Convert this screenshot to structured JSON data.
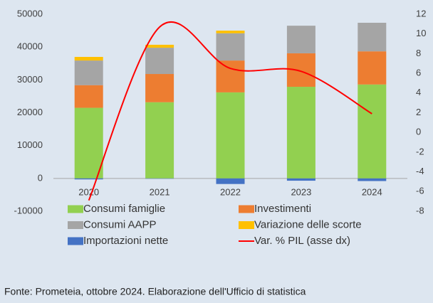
{
  "chart_data": {
    "type": "bar",
    "categories": [
      "2020",
      "2021",
      "2022",
      "2023",
      "2024"
    ],
    "series": [
      {
        "name": "Consumi famiglie",
        "color": "#92d050",
        "values": [
          21500,
          23200,
          26200,
          27900,
          28600
        ]
      },
      {
        "name": "Investimenti",
        "color": "#ed7d31",
        "values": [
          6900,
          8600,
          9700,
          10200,
          10100
        ]
      },
      {
        "name": "Consumi AAPP",
        "color": "#a5a5a5",
        "values": [
          7500,
          8000,
          8300,
          8400,
          8700
        ]
      },
      {
        "name": "Variazione delle scorte",
        "color": "#ffc000",
        "values": [
          1100,
          900,
          800,
          0,
          0
        ]
      },
      {
        "name": "Importazioni nette",
        "color": "#4472c4",
        "values": [
          -300,
          -100,
          -1700,
          -700,
          -800
        ]
      },
      {
        "name": "Var. % PIL (asse dx)",
        "color": "#ff0000",
        "type": "line",
        "axis": "y2",
        "values": [
          -6.9,
          10.7,
          6.5,
          6.2,
          1.9
        ]
      }
    ],
    "ylim": [
      -10000,
      50000
    ],
    "yticks": [
      -10000,
      0,
      10000,
      20000,
      30000,
      40000,
      50000
    ],
    "y2lim": [
      -8,
      12
    ],
    "y2ticks": [
      -8,
      -6,
      -4,
      -2,
      0,
      2,
      4,
      6,
      8,
      10,
      12
    ],
    "stacked": true,
    "legend": "bottom",
    "source": "Fonte: Prometeia, ottobre 2024. Elaborazione dell'Ufficio di statistica"
  }
}
